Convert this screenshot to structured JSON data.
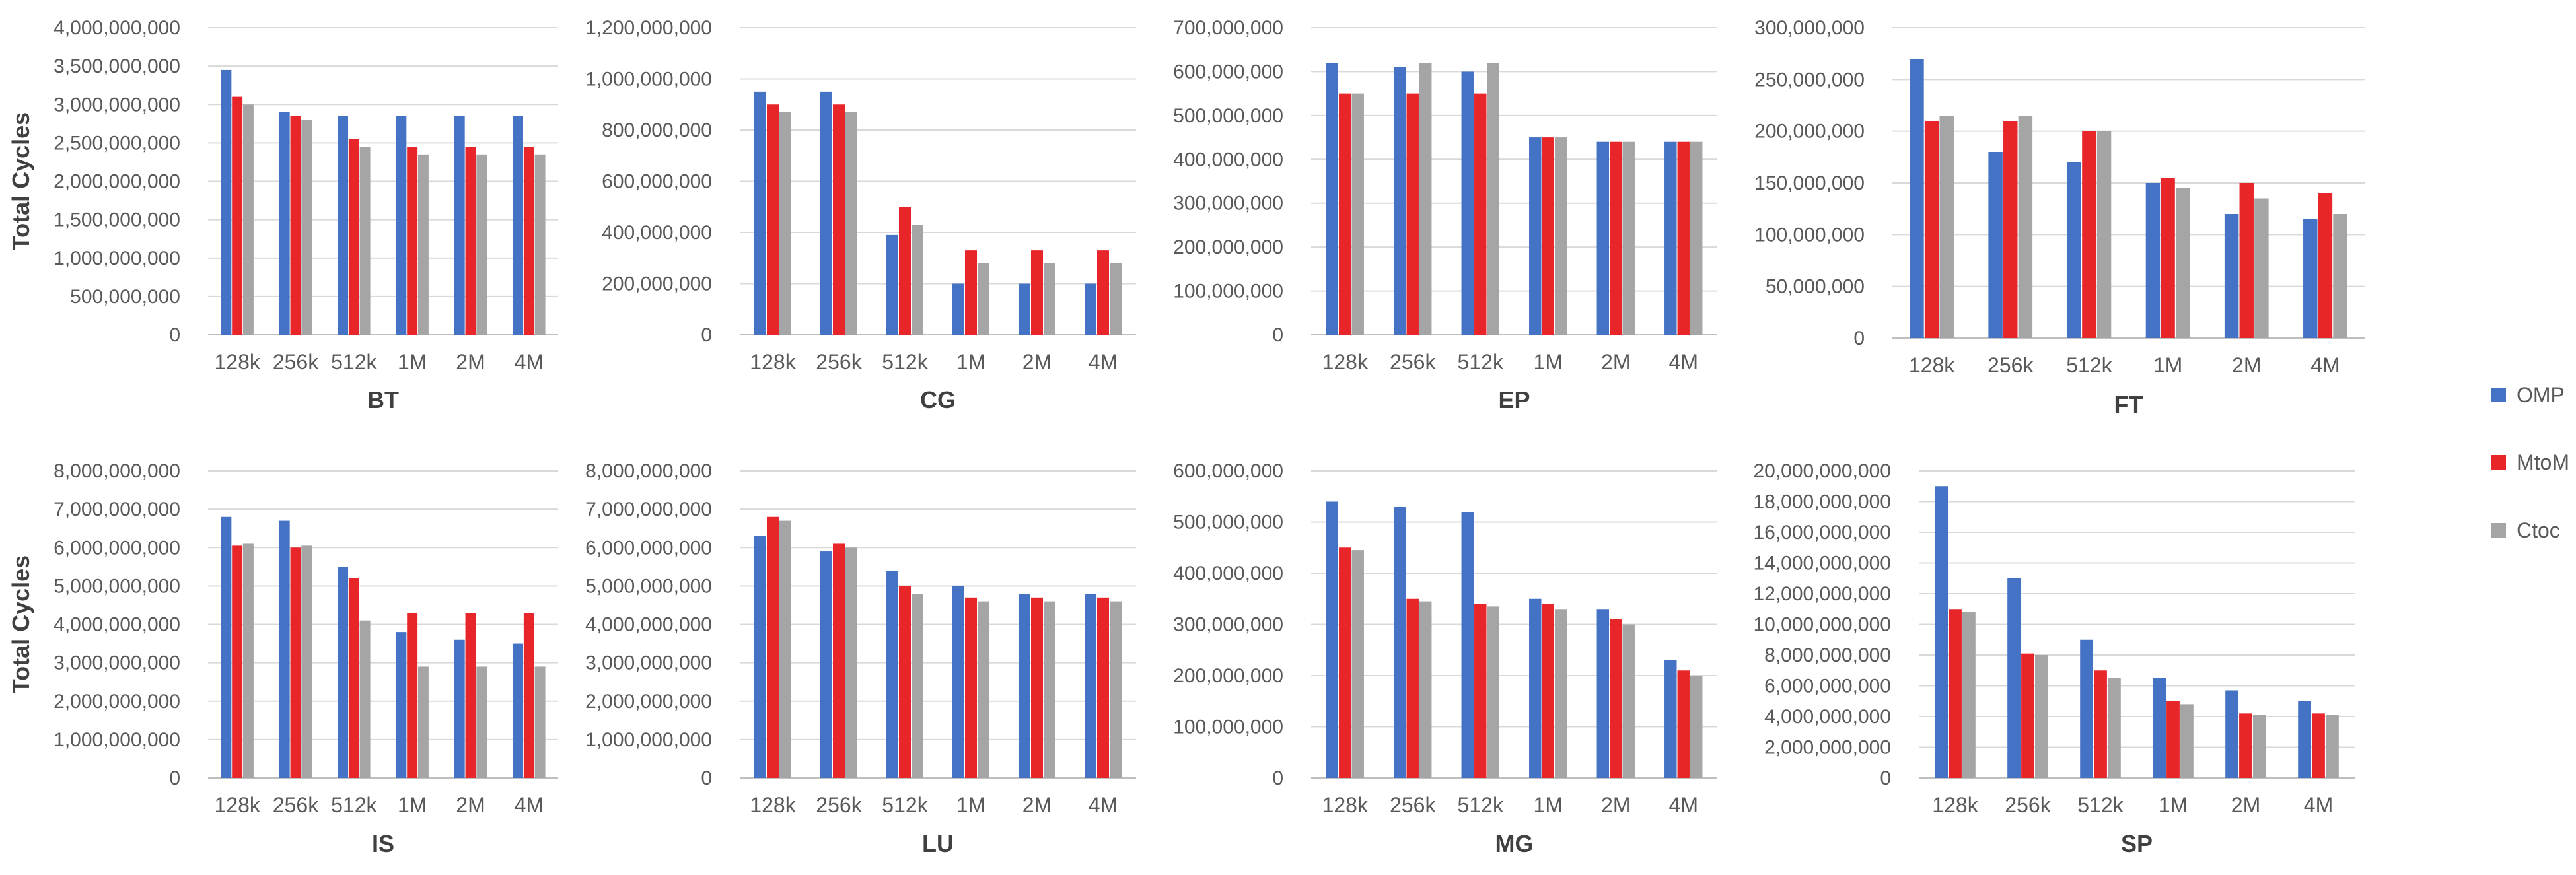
{
  "chart_data": [
    {
      "type": "bar",
      "title": "BT",
      "ylabel": "Total Cycles",
      "xlabel": "BT",
      "categories": [
        "128k",
        "256k",
        "512k",
        "1M",
        "2M",
        "4M"
      ],
      "ylim": [
        0,
        4000000000
      ],
      "yticks": [
        0,
        500000000,
        1000000000,
        1500000000,
        2000000000,
        2500000000,
        3000000000,
        3500000000,
        4000000000
      ],
      "series": [
        {
          "name": "OMP",
          "values": [
            3450000000,
            2900000000,
            2850000000,
            2850000000,
            2850000000,
            2850000000
          ]
        },
        {
          "name": "MtoM",
          "values": [
            3100000000,
            2850000000,
            2550000000,
            2450000000,
            2450000000,
            2450000000
          ]
        },
        {
          "name": "Ctoc",
          "values": [
            3000000000,
            2800000000,
            2450000000,
            2350000000,
            2350000000,
            2350000000
          ]
        }
      ]
    },
    {
      "type": "bar",
      "title": "CG",
      "ylabel": "",
      "xlabel": "CG",
      "categories": [
        "128k",
        "256k",
        "512k",
        "1M",
        "2M",
        "4M"
      ],
      "ylim": [
        0,
        1200000000
      ],
      "yticks": [
        0,
        200000000,
        400000000,
        600000000,
        800000000,
        1000000000,
        1200000000
      ],
      "series": [
        {
          "name": "OMP",
          "values": [
            950000000,
            950000000,
            390000000,
            200000000,
            200000000,
            200000000
          ]
        },
        {
          "name": "MtoM",
          "values": [
            900000000,
            900000000,
            500000000,
            330000000,
            330000000,
            330000000
          ]
        },
        {
          "name": "Ctoc",
          "values": [
            870000000,
            870000000,
            430000000,
            280000000,
            280000000,
            280000000
          ]
        }
      ]
    },
    {
      "type": "bar",
      "title": "EP",
      "ylabel": "",
      "xlabel": "EP",
      "categories": [
        "128k",
        "256k",
        "512k",
        "1M",
        "2M",
        "4M"
      ],
      "ylim": [
        0,
        700000000
      ],
      "yticks": [
        0,
        100000000,
        200000000,
        300000000,
        400000000,
        500000000,
        600000000,
        700000000
      ],
      "series": [
        {
          "name": "OMP",
          "values": [
            620000000,
            610000000,
            600000000,
            450000000,
            440000000,
            440000000
          ]
        },
        {
          "name": "MtoM",
          "values": [
            550000000,
            550000000,
            550000000,
            450000000,
            440000000,
            440000000
          ]
        },
        {
          "name": "Ctoc",
          "values": [
            550000000,
            620000000,
            620000000,
            450000000,
            440000000,
            440000000
          ]
        }
      ]
    },
    {
      "type": "bar",
      "title": "FT",
      "ylabel": "",
      "xlabel": "FT",
      "categories": [
        "128k",
        "256k",
        "512k",
        "1M",
        "2M",
        "4M"
      ],
      "ylim": [
        0,
        300000000
      ],
      "yticks": [
        0,
        50000000,
        100000000,
        150000000,
        200000000,
        250000000,
        300000000
      ],
      "series": [
        {
          "name": "OMP",
          "values": [
            270000000,
            180000000,
            170000000,
            150000000,
            120000000,
            115000000
          ]
        },
        {
          "name": "MtoM",
          "values": [
            210000000,
            210000000,
            200000000,
            155000000,
            150000000,
            140000000
          ]
        },
        {
          "name": "Ctoc",
          "values": [
            215000000,
            215000000,
            200000000,
            145000000,
            135000000,
            120000000
          ]
        }
      ]
    },
    {
      "type": "bar",
      "title": "IS",
      "ylabel": "Total Cycles",
      "xlabel": "IS",
      "categories": [
        "128k",
        "256k",
        "512k",
        "1M",
        "2M",
        "4M"
      ],
      "ylim": [
        0,
        8000000000
      ],
      "yticks": [
        0,
        1000000000,
        2000000000,
        3000000000,
        4000000000,
        5000000000,
        6000000000,
        7000000000,
        8000000000
      ],
      "series": [
        {
          "name": "OMP",
          "values": [
            6800000000,
            6700000000,
            5500000000,
            3800000000,
            3600000000,
            3500000000
          ]
        },
        {
          "name": "MtoM",
          "values": [
            6050000000,
            6000000000,
            5200000000,
            4300000000,
            4300000000,
            4300000000
          ]
        },
        {
          "name": "Ctoc",
          "values": [
            6100000000,
            6050000000,
            4100000000,
            2900000000,
            2900000000,
            2900000000
          ]
        }
      ]
    },
    {
      "type": "bar",
      "title": "LU",
      "ylabel": "",
      "xlabel": "LU",
      "categories": [
        "128k",
        "256k",
        "512k",
        "1M",
        "2M",
        "4M"
      ],
      "ylim": [
        0,
        8000000000
      ],
      "yticks": [
        0,
        1000000000,
        2000000000,
        3000000000,
        4000000000,
        5000000000,
        6000000000,
        7000000000,
        8000000000
      ],
      "series": [
        {
          "name": "OMP",
          "values": [
            6300000000,
            5900000000,
            5400000000,
            5000000000,
            4800000000,
            4800000000
          ]
        },
        {
          "name": "MtoM",
          "values": [
            6800000000,
            6100000000,
            5000000000,
            4700000000,
            4700000000,
            4700000000
          ]
        },
        {
          "name": "Ctoc",
          "values": [
            6700000000,
            6000000000,
            4800000000,
            4600000000,
            4600000000,
            4600000000
          ]
        }
      ]
    },
    {
      "type": "bar",
      "title": "MG",
      "ylabel": "",
      "xlabel": "MG",
      "categories": [
        "128k",
        "256k",
        "512k",
        "1M",
        "2M",
        "4M"
      ],
      "ylim": [
        0,
        600000000
      ],
      "yticks": [
        0,
        100000000,
        200000000,
        300000000,
        400000000,
        500000000,
        600000000
      ],
      "series": [
        {
          "name": "OMP",
          "values": [
            540000000,
            530000000,
            520000000,
            350000000,
            330000000,
            230000000
          ]
        },
        {
          "name": "MtoM",
          "values": [
            450000000,
            350000000,
            340000000,
            340000000,
            310000000,
            210000000
          ]
        },
        {
          "name": "Ctoc",
          "values": [
            445000000,
            345000000,
            335000000,
            330000000,
            300000000,
            200000000
          ]
        }
      ]
    },
    {
      "type": "bar",
      "title": "SP",
      "ylabel": "",
      "xlabel": "SP",
      "categories": [
        "128k",
        "256k",
        "512k",
        "1M",
        "2M",
        "4M"
      ],
      "ylim": [
        0,
        20000000000
      ],
      "yticks": [
        0,
        2000000000,
        4000000000,
        6000000000,
        8000000000,
        10000000000,
        12000000000,
        14000000000,
        16000000000,
        18000000000,
        20000000000
      ],
      "series": [
        {
          "name": "OMP",
          "values": [
            19000000000,
            13000000000,
            9000000000,
            6500000000,
            5700000000,
            5000000000
          ]
        },
        {
          "name": "MtoM",
          "values": [
            11000000000,
            8100000000,
            7000000000,
            5000000000,
            4200000000,
            4200000000
          ]
        },
        {
          "name": "Ctoc",
          "values": [
            10800000000,
            8000000000,
            6500000000,
            4800000000,
            4100000000,
            4100000000
          ]
        }
      ]
    }
  ],
  "legend": {
    "position": "right",
    "entries": [
      {
        "name": "OMP",
        "color": "#4472c4"
      },
      {
        "name": "MtoM",
        "color": "#e8262a"
      },
      {
        "name": "Ctoc",
        "color": "#a5a5a5"
      }
    ]
  }
}
